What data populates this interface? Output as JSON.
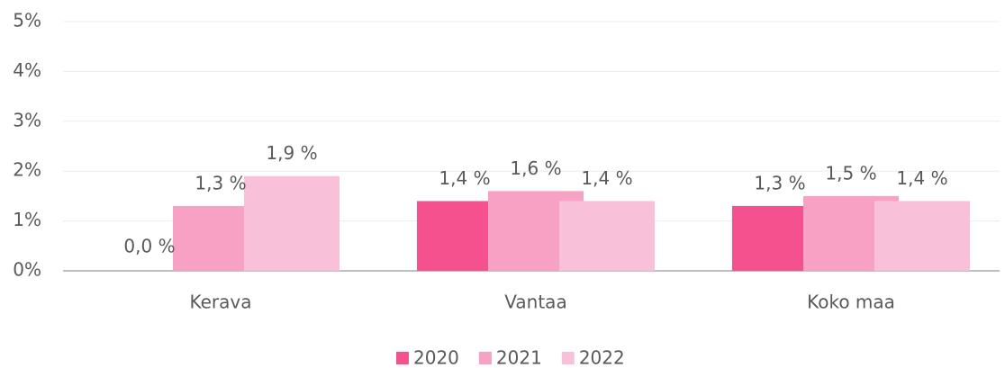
{
  "chart_data": {
    "type": "bar",
    "categories": [
      "Kerava",
      "Vantaa",
      "Koko maa"
    ],
    "series": [
      {
        "name": "2020",
        "color": "#f4528f",
        "values": [
          0.0,
          1.4,
          1.3
        ],
        "value_labels": [
          "0,0 %",
          "1,4 %",
          "1,3 %"
        ]
      },
      {
        "name": "2021",
        "color": "#f7a1c5",
        "values": [
          1.3,
          1.6,
          1.5
        ],
        "value_labels": [
          "1,3 %",
          "1,6 %",
          "1,5 %"
        ]
      },
      {
        "name": "2022",
        "color": "#f9c1d9",
        "values": [
          1.9,
          1.4,
          1.4
        ],
        "value_labels": [
          "1,9 %",
          "1,4 %",
          "1,4 %"
        ]
      }
    ],
    "ylim": [
      0,
      5
    ],
    "yticks": [
      {
        "value": 0,
        "label": "0%"
      },
      {
        "value": 1,
        "label": "1%"
      },
      {
        "value": 2,
        "label": "2%"
      },
      {
        "value": 3,
        "label": "3%"
      },
      {
        "value": 4,
        "label": "4%"
      },
      {
        "value": 5,
        "label": "5%"
      }
    ],
    "grid": true,
    "legend": "bottom"
  }
}
